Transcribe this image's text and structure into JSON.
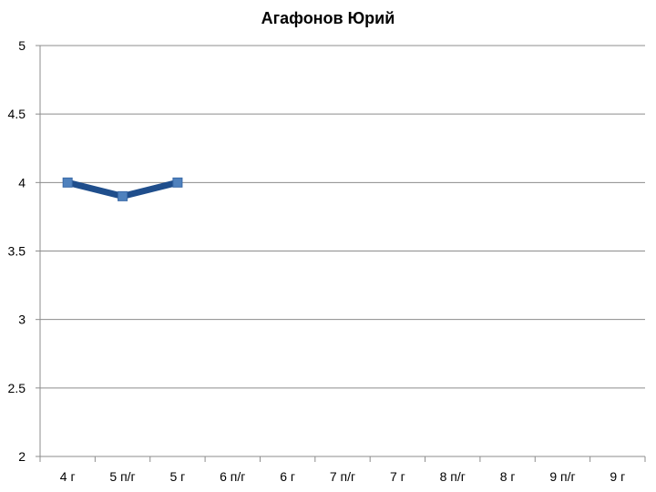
{
  "chart_data": {
    "type": "line",
    "title": "Агафонов Юрий",
    "xlabel": "",
    "ylabel": "",
    "categories": [
      "4 г",
      "5 п/г",
      "5 г",
      "6 п/г",
      "6 г",
      "7 п/г",
      "7 г",
      "8 п/г",
      "8 г",
      "9 п/г",
      "9 г"
    ],
    "y_ticks": [
      "2",
      "2.5",
      "3",
      "3.5",
      "4",
      "4.5",
      "5"
    ],
    "ylim": [
      2,
      5
    ],
    "grid": true,
    "legend": "none",
    "series": [
      {
        "values": [
          4.0,
          3.9,
          4.0,
          null,
          null,
          null,
          null,
          null,
          null,
          null,
          null
        ]
      }
    ],
    "colors": {
      "line": "#1f4e8c",
      "marker": "#4f81bd",
      "grid": "#8c8c8c",
      "axis": "#8c8c8c"
    }
  }
}
